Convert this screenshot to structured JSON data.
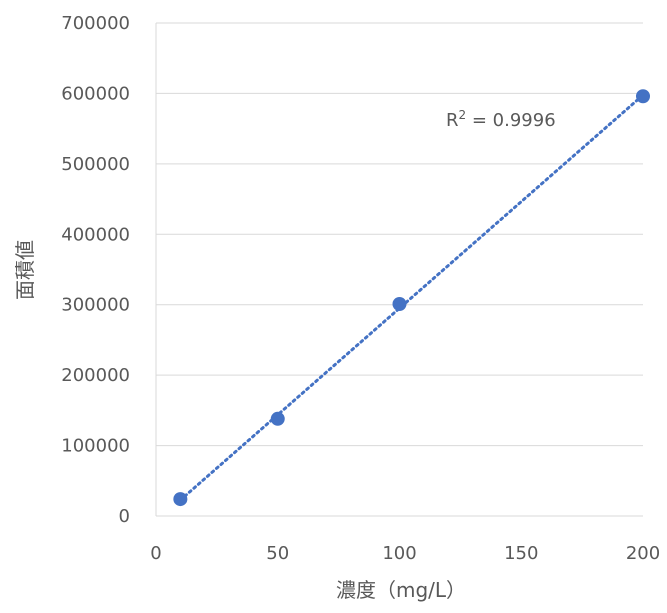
{
  "chart_data": {
    "type": "scatter",
    "title": "",
    "xlabel": "濃度（mg/L）",
    "ylabel": "面積値",
    "xlim": [
      0,
      200
    ],
    "ylim": [
      0,
      700000
    ],
    "xticks": [
      0,
      50,
      100,
      150,
      200
    ],
    "yticks": [
      0,
      100000,
      200000,
      300000,
      400000,
      500000,
      600000,
      700000
    ],
    "xtick_labels": [
      "0",
      "50",
      "100",
      "150",
      "200"
    ],
    "ytick_labels": [
      "0",
      "100000",
      "200000",
      "300000",
      "400000",
      "500000",
      "600000",
      "700000"
    ],
    "grid": "horizontal",
    "legend": "none",
    "series": [
      {
        "x": [
          10,
          50,
          100,
          200
        ],
        "y": [
          24000,
          138000,
          301000,
          596000
        ],
        "color": "#4472C4"
      }
    ],
    "trendline": {
      "type": "linear",
      "style": "dotted",
      "color": "#4472C4",
      "x_range": [
        10,
        200
      ],
      "annotation": {
        "prefix": "R",
        "superscript": "2",
        "suffix": " = 0.9996"
      }
    }
  }
}
